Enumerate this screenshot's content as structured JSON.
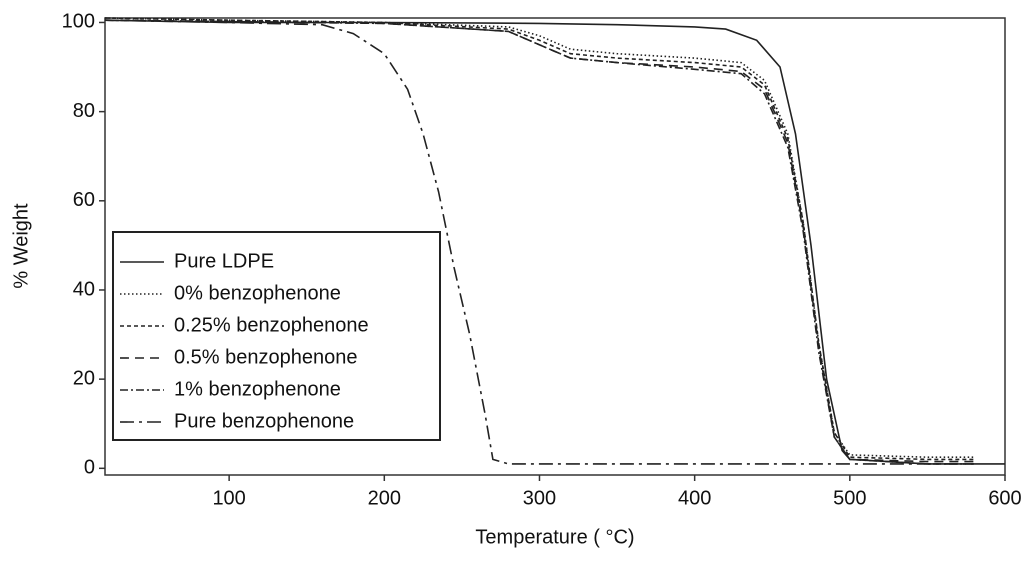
{
  "chart_data": {
    "type": "line",
    "x_label": "Temperature ( °C)",
    "y_label": "% Weight",
    "xlim": [
      20,
      600
    ],
    "ylim": [
      -1.5,
      101
    ],
    "xticks": [
      100,
      200,
      300,
      400,
      500,
      600
    ],
    "yticks": [
      0,
      20,
      40,
      60,
      80,
      100
    ],
    "legend": "lower left",
    "series": [
      {
        "name": "Pure LDPE",
        "color": "#222222",
        "dash": "none",
        "x": [
          20,
          100,
          200,
          300,
          350,
          400,
          420,
          440,
          455,
          465,
          475,
          485,
          495,
          500,
          550,
          600
        ],
        "values": [
          100.5,
          100,
          100,
          99.8,
          99.5,
          99,
          98.5,
          96,
          90,
          75,
          50,
          20,
          4,
          2,
          1,
          1
        ]
      },
      {
        "name": "0% benzophenone",
        "color": "#222222",
        "dash": "1.5 2.5",
        "x": [
          20,
          100,
          200,
          280,
          300,
          320,
          350,
          400,
          430,
          445,
          460,
          470,
          480,
          490,
          500,
          550,
          580
        ],
        "values": [
          101,
          100.5,
          100,
          99,
          97,
          94,
          93,
          92,
          91,
          87,
          75,
          55,
          28,
          8,
          3,
          2.5,
          2.5
        ]
      },
      {
        "name": "0.25% benzophenone",
        "color": "#222222",
        "dash": "4 3",
        "x": [
          20,
          100,
          200,
          280,
          300,
          320,
          350,
          400,
          430,
          445,
          460,
          470,
          480,
          490,
          500,
          550,
          580
        ],
        "values": [
          101,
          100.5,
          100,
          98.5,
          96,
          93,
          92,
          91,
          90,
          86,
          74,
          55,
          28,
          8,
          2.5,
          2,
          2
        ]
      },
      {
        "name": "0.5% benzophenone",
        "color": "#222222",
        "dash": "9 6",
        "x": [
          20,
          100,
          200,
          280,
          300,
          320,
          350,
          400,
          430,
          445,
          460,
          470,
          480,
          490,
          500,
          550,
          580
        ],
        "values": [
          100.5,
          100.2,
          99.8,
          98,
          95,
          92,
          91,
          90,
          89,
          85,
          73,
          54,
          27,
          7,
          2,
          1.5,
          1.5
        ]
      },
      {
        "name": "1% benzophenone",
        "color": "#222222",
        "dash": "8 3 2 3",
        "x": [
          20,
          100,
          200,
          280,
          300,
          320,
          350,
          400,
          430,
          445,
          460,
          470,
          480,
          490,
          500,
          550,
          580
        ],
        "values": [
          100.5,
          100.2,
          99.8,
          98,
          95,
          92,
          91,
          89.5,
          88.5,
          84,
          72,
          53,
          26,
          7,
          2,
          1,
          1
        ]
      },
      {
        "name": "Pure benzophenone",
        "color": "#222222",
        "dash": "14 5 3 5",
        "x": [
          20,
          100,
          160,
          180,
          200,
          215,
          225,
          235,
          245,
          255,
          265,
          270,
          280,
          400,
          500,
          580
        ],
        "values": [
          100.5,
          100,
          99.5,
          97.5,
          93,
          85,
          75,
          62,
          45,
          30,
          12,
          2,
          1,
          1,
          1,
          1
        ]
      }
    ]
  }
}
